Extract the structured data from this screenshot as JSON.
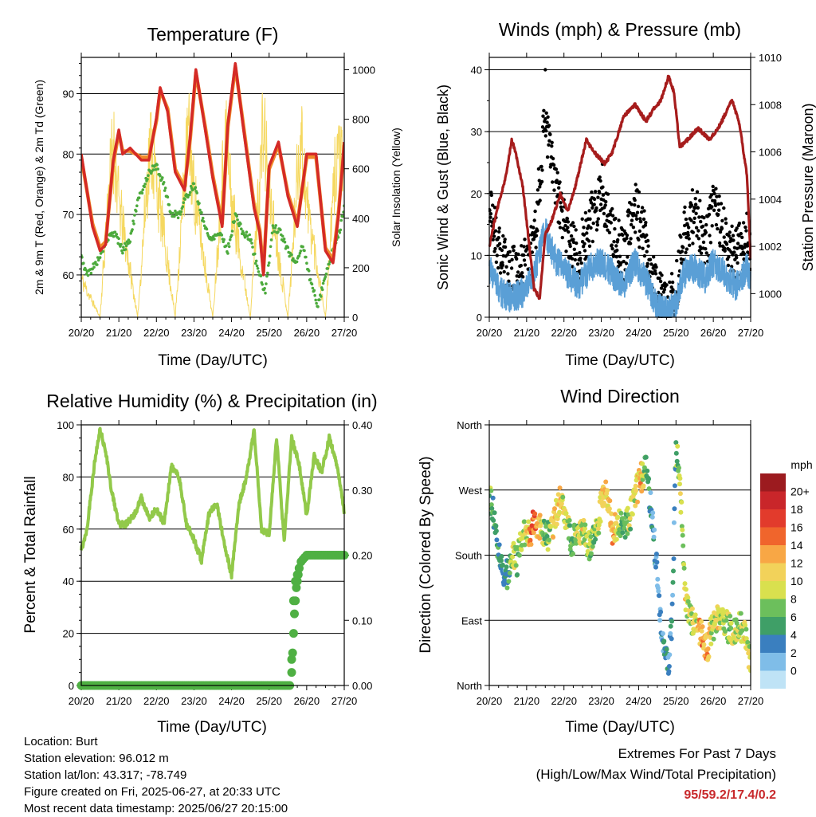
{
  "colors": {
    "temp_2m": "#d42a26",
    "temp_9m": "#f08a2a",
    "dewpoint": "#4caa3c",
    "insolation": "#f5d860",
    "gust": "#000000",
    "wind": "#5a9fd6",
    "pressure": "#a61c1c",
    "rh": "#92c94a",
    "precip": "#4fb043",
    "extremes_text": "#c8282b"
  },
  "time_ticks": [
    "20/20",
    "21/20",
    "22/20",
    "23/20",
    "24/20",
    "25/20",
    "26/20",
    "27/20"
  ],
  "panels": {
    "temperature": {
      "title": "Temperature (F)",
      "xlabel": "Time (Day/UTC)",
      "ylabel_left": "2m & 9m T (Red, Orange) & 2m Td (Green)",
      "ylabel_right": "Solar Insolation (Yellow)"
    },
    "winds": {
      "title": "Winds (mph) & Pressure (mb)",
      "xlabel": "Time (Day/UTC)",
      "ylabel_left": "Sonic Wind & Gust (Blue, Black)",
      "ylabel_right": "Station Pressure (Maroon)"
    },
    "humidity": {
      "title": "Relative Humidity (%) & Precipitation (in)",
      "xlabel": "Time (Day/UTC)",
      "ylabel_left": "Percent & Total Rainfall"
    },
    "direction": {
      "title": "Wind Direction",
      "xlabel": "Time (Day/UTC)",
      "ylabel_left": "Direction (Colored By Speed)",
      "colorbar_title": "mph",
      "colorbar_labels": [
        "20+",
        "18",
        "16",
        "14",
        "12",
        "10",
        "8",
        "6",
        "4",
        "2",
        "0"
      ],
      "colorbar_colors": [
        "#9c1b1f",
        "#c9262a",
        "#e23b2c",
        "#f0652c",
        "#f8a745",
        "#f2d25a",
        "#d9e04e",
        "#6cbf5c",
        "#3f9f67",
        "#3a7fbf",
        "#7fbde8",
        "#bfe3f6"
      ]
    }
  },
  "info": {
    "location": "Location: Burt",
    "elevation": "Station elevation: 96.012 m",
    "latlon": "Station lat/lon: 43.317; -78.749",
    "created": "Figure created on Fri, 2025-06-27, at 20:33 UTC",
    "recent": "Most recent data timestamp: 2025/06/27 20:15:00"
  },
  "extremes": {
    "title": "Extremes For Past 7 Days",
    "subtitle": "(High/Low/Max Wind/Total Precipitation)",
    "values": "95/59.2/17.4/0.2"
  },
  "chart_data": [
    {
      "type": "line",
      "panel": "temperature",
      "x_unit": "days since 20/20 UTC",
      "xlim": [
        0,
        7
      ],
      "ylim": [
        53,
        96
      ],
      "ylim_right": [
        0,
        1050
      ],
      "yticks": [
        60,
        70,
        80,
        90
      ],
      "yticks_right": [
        0,
        200,
        400,
        600,
        800,
        1000
      ],
      "series": [
        {
          "name": "2m T",
          "x": [
            0,
            0.3,
            0.5,
            0.65,
            0.85,
            1.0,
            1.1,
            1.3,
            1.6,
            1.8,
            2.0,
            2.1,
            2.3,
            2.5,
            2.75,
            2.9,
            3.05,
            3.3,
            3.5,
            3.75,
            3.9,
            4.1,
            4.3,
            4.6,
            4.75,
            4.85,
            5.0,
            5.25,
            5.5,
            5.75,
            6.0,
            6.25,
            6.5,
            6.7,
            6.85,
            7.0
          ],
          "y": [
            80,
            68,
            64,
            65,
            79,
            84,
            80,
            81,
            79,
            79,
            86,
            91,
            87,
            77,
            74,
            83,
            94,
            84,
            76,
            68,
            85,
            95,
            85,
            71,
            67,
            60,
            78,
            82,
            73,
            68,
            80,
            80,
            64,
            62,
            70,
            82
          ]
        },
        {
          "name": "9m T",
          "x": [
            0,
            0.3,
            0.5,
            0.65,
            0.85,
            1.0,
            1.1,
            1.3,
            1.6,
            1.8,
            2.0,
            2.1,
            2.3,
            2.5,
            2.75,
            2.9,
            3.05,
            3.3,
            3.5,
            3.75,
            3.9,
            4.1,
            4.3,
            4.6,
            4.75,
            4.85,
            5.0,
            5.25,
            5.5,
            5.75,
            6.0,
            6.25,
            6.5,
            6.7,
            6.85,
            7.0
          ],
          "y": [
            79.5,
            68.5,
            64.5,
            65.5,
            78.5,
            83.5,
            80.5,
            80.5,
            79.5,
            79.5,
            85.5,
            90.5,
            87.5,
            77.5,
            74.5,
            82.5,
            93.5,
            84.5,
            76.5,
            68.5,
            84.5,
            94.5,
            85.5,
            71.5,
            67.5,
            60.5,
            77.5,
            81.5,
            73.5,
            68.5,
            79.5,
            79.5,
            64.5,
            62.5,
            70.5,
            81.5
          ]
        },
        {
          "name": "2m Td",
          "x": [
            0,
            0.15,
            0.4,
            0.7,
            0.9,
            1.1,
            1.3,
            1.5,
            1.8,
            2.0,
            2.2,
            2.4,
            2.6,
            2.8,
            3.0,
            3.2,
            3.4,
            3.7,
            3.9,
            4.1,
            4.3,
            4.5,
            4.7,
            4.9,
            5.1,
            5.3,
            5.5,
            5.7,
            5.9,
            6.1,
            6.3,
            6.5,
            6.7,
            6.9,
            7.0
          ],
          "y": [
            63,
            60,
            62,
            66,
            67,
            64,
            66,
            72,
            77,
            78,
            75,
            70,
            70,
            73,
            75,
            70,
            66,
            67,
            64,
            70,
            67,
            66,
            61,
            57,
            68,
            67,
            64,
            62,
            65,
            59,
            55,
            60,
            64,
            68,
            71
          ]
        },
        {
          "name": "Solar Insolation",
          "axis": "right",
          "x": [
            0,
            0.5,
            0.62,
            0.75,
            0.85,
            1.0,
            1.5,
            1.62,
            1.75,
            1.85,
            2.0,
            2.5,
            2.62,
            2.75,
            2.85,
            3.0,
            3.5,
            3.62,
            3.75,
            3.85,
            4.0,
            4.5,
            4.62,
            4.75,
            4.85,
            5.0,
            5.5,
            5.62,
            5.75,
            5.85,
            6.0,
            6.5,
            6.62,
            6.75,
            6.85,
            7.0
          ],
          "y": [
            200,
            0,
            350,
            700,
            920,
            600,
            0,
            330,
            700,
            920,
            700,
            0,
            350,
            720,
            960,
            650,
            0,
            330,
            720,
            960,
            600,
            0,
            360,
            740,
            1000,
            650,
            0,
            330,
            740,
            960,
            600,
            0,
            360,
            740,
            920,
            650
          ]
        }
      ]
    },
    {
      "type": "line",
      "panel": "winds",
      "x_unit": "days since 20/20 UTC",
      "xlim": [
        0,
        7
      ],
      "ylim": [
        0,
        42
      ],
      "ylim_right": [
        999,
        1010
      ],
      "yticks": [
        0,
        10,
        20,
        30,
        40
      ],
      "yticks_right": [
        1000,
        1002,
        1004,
        1006,
        1008,
        1010
      ],
      "series": [
        {
          "name": "Gust",
          "x": [
            0,
            0.3,
            0.6,
            0.9,
            1.2,
            1.4,
            1.5,
            1.6,
            1.8,
            2.1,
            2.4,
            2.7,
            3.0,
            3.3,
            3.6,
            3.9,
            4.2,
            4.4,
            4.6,
            4.8,
            5.0,
            5.2,
            5.5,
            5.8,
            6.0,
            6.3,
            6.6,
            6.9,
            7.0
          ],
          "y": [
            18,
            10,
            7,
            8,
            12,
            25,
            33,
            28,
            20,
            13,
            10,
            15,
            21,
            14,
            10,
            18,
            12,
            6,
            3,
            2,
            4,
            13,
            17,
            12,
            18,
            14,
            10,
            13,
            10
          ]
        },
        {
          "name": "Sonic Wind",
          "x": [
            0,
            0.3,
            0.6,
            0.9,
            1.2,
            1.4,
            1.5,
            1.6,
            1.8,
            2.1,
            2.4,
            2.7,
            3.0,
            3.3,
            3.6,
            3.9,
            4.2,
            4.4,
            4.6,
            4.8,
            5.0,
            5.2,
            5.5,
            5.8,
            6.0,
            6.3,
            6.6,
            6.9,
            7.0
          ],
          "y": [
            8,
            4,
            3,
            4,
            7,
            12,
            14,
            12,
            9,
            7,
            5,
            8,
            9,
            7,
            5,
            9,
            6,
            3,
            1,
            1,
            2,
            7,
            8,
            6,
            9,
            7,
            5,
            8,
            6
          ]
        },
        {
          "name": "Station Pressure",
          "axis": "right",
          "x": [
            0,
            0.2,
            0.45,
            0.6,
            0.7,
            0.9,
            1.2,
            1.35,
            1.5,
            1.65,
            1.9,
            2.1,
            2.3,
            2.6,
            2.8,
            3.1,
            3.3,
            3.6,
            3.9,
            4.2,
            4.4,
            4.6,
            4.8,
            4.95,
            5.1,
            5.3,
            5.6,
            5.9,
            6.2,
            6.5,
            6.7,
            6.9,
            7.0
          ],
          "y": [
            1002.0,
            1003.5,
            1005.0,
            1006.5,
            1006.0,
            1004.5,
            1000.2,
            999.8,
            1002.5,
            1003.0,
            1004.2,
            1003.5,
            1004.5,
            1006.5,
            1006.0,
            1005.5,
            1006.0,
            1007.5,
            1008.0,
            1007.3,
            1007.8,
            1008.2,
            1009.2,
            1008.5,
            1006.2,
            1006.5,
            1007.0,
            1006.5,
            1007.2,
            1008.2,
            1007.2,
            1005.0,
            1001.5
          ]
        }
      ]
    },
    {
      "type": "line",
      "panel": "humidity",
      "x_unit": "days since 20/20 UTC",
      "xlim": [
        0,
        7
      ],
      "ylim": [
        0,
        100
      ],
      "ylim_right": [
        0,
        0.4
      ],
      "yticks": [
        0,
        20,
        40,
        60,
        80,
        100
      ],
      "yticks_right": [
        0.0,
        0.1,
        0.2,
        0.3,
        0.4
      ],
      "series": [
        {
          "name": "Relative Humidity",
          "x": [
            0,
            0.15,
            0.35,
            0.5,
            0.65,
            0.8,
            1.0,
            1.2,
            1.4,
            1.6,
            1.8,
            2.0,
            2.2,
            2.4,
            2.6,
            2.8,
            3.0,
            3.2,
            3.4,
            3.6,
            3.8,
            4.0,
            4.2,
            4.4,
            4.6,
            4.8,
            5.0,
            5.2,
            5.4,
            5.6,
            5.8,
            6.0,
            6.2,
            6.4,
            6.6,
            6.8,
            7.0
          ],
          "y": [
            52,
            60,
            85,
            98,
            90,
            75,
            62,
            62,
            65,
            72,
            64,
            68,
            62,
            84,
            80,
            62,
            56,
            48,
            66,
            70,
            55,
            42,
            70,
            80,
            98,
            60,
            58,
            95,
            55,
            95,
            85,
            65,
            88,
            82,
            95,
            85,
            67
          ]
        },
        {
          "name": "Total Precipitation",
          "axis": "right",
          "x": [
            0,
            5.55,
            5.6,
            5.65,
            5.7,
            5.75,
            5.85,
            6.0,
            7.0
          ],
          "y": [
            0.0,
            0.0,
            0.04,
            0.13,
            0.16,
            0.17,
            0.19,
            0.2,
            0.2
          ]
        }
      ]
    },
    {
      "type": "scatter",
      "panel": "direction",
      "x_unit": "days since 20/20 UTC",
      "xlim": [
        0,
        7
      ],
      "ylim": [
        0,
        360
      ],
      "yticks": [
        0,
        90,
        180,
        270,
        360
      ],
      "ytick_labels": [
        "North",
        "East",
        "South",
        "West",
        "North"
      ],
      "series": [
        {
          "name": "Wind Direction",
          "x": [
            0.0,
            0.1,
            0.2,
            0.3,
            0.45,
            0.55,
            0.65,
            0.75,
            0.85,
            1.0,
            1.1,
            1.2,
            1.3,
            1.45,
            1.55,
            1.7,
            1.85,
            1.95,
            2.1,
            2.2,
            2.35,
            2.5,
            2.7,
            2.85,
            3.0,
            3.15,
            3.3,
            3.45,
            3.6,
            3.75,
            3.95,
            4.05,
            4.2,
            4.35,
            4.5,
            4.6,
            4.7,
            4.8,
            4.9,
            5.0,
            5.1,
            5.25,
            5.4,
            5.55,
            5.7,
            5.85,
            5.95,
            6.1,
            6.25,
            6.4,
            6.55,
            6.7,
            6.85,
            7.0
          ],
          "y": [
            265,
            240,
            205,
            170,
            150,
            165,
            185,
            170,
            200,
            215,
            205,
            230,
            220,
            210,
            205,
            215,
            250,
            260,
            220,
            200,
            205,
            215,
            190,
            205,
            250,
            265,
            210,
            225,
            220,
            230,
            270,
            285,
            300,
            240,
            150,
            80,
            40,
            20,
            100,
            330,
            290,
            120,
            90,
            80,
            70,
            50,
            80,
            90,
            95,
            80,
            75,
            85,
            70,
            30
          ],
          "speed": [
            8,
            6,
            5,
            4,
            4,
            6,
            10,
            6,
            8,
            10,
            13,
            16,
            12,
            8,
            6,
            10,
            12,
            10,
            8,
            6,
            8,
            10,
            8,
            7,
            12,
            10,
            14,
            8,
            6,
            8,
            10,
            12,
            6,
            3,
            2,
            2,
            3,
            4,
            2,
            6,
            8,
            10,
            8,
            10,
            14,
            12,
            8,
            10,
            9,
            8,
            10,
            8,
            10,
            8
          ]
        }
      ]
    }
  ]
}
